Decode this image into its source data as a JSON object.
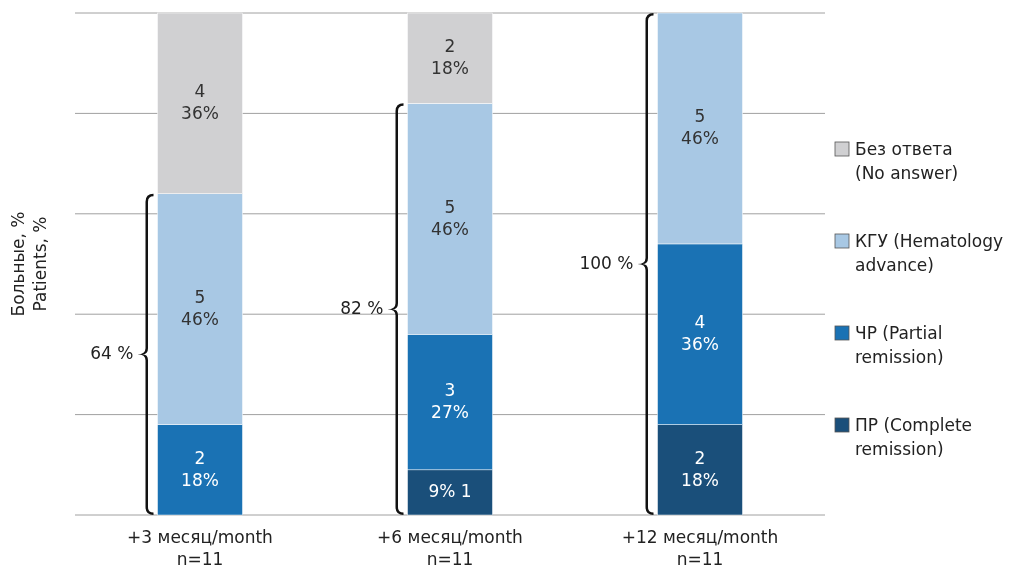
{
  "chart_data": {
    "type": "bar",
    "stacked": true,
    "ylabel": "Больные, %\nPatients, %",
    "categories": [
      "+3 месяц/month\nn=11",
      "+6 месяц/month\nn=11",
      "+12 месяц/month\nn=11"
    ],
    "series": [
      {
        "name": "ПР (Complete\nremission)",
        "color": "#1a4f7a",
        "values": [
          0,
          9,
          18
        ],
        "value_labels": [
          null,
          "9% 1",
          "2\n18%"
        ]
      },
      {
        "name": "ЧР (Partial\nremission)",
        "color": "#1a72b4",
        "values": [
          18,
          27,
          36
        ],
        "value_labels": [
          "2\n18%",
          "3\n27%",
          "4\n36%"
        ]
      },
      {
        "name": "КГУ (Hematology\nadvance)",
        "color": "#a8c8e4",
        "values": [
          46,
          46,
          46
        ],
        "value_labels": [
          "5\n46%",
          "5\n46%",
          "5\n46%"
        ]
      },
      {
        "name": "Без ответа\n(No answer)",
        "color": "#d0d0d2",
        "values": [
          36,
          18,
          0
        ],
        "value_labels": [
          "4\n36%",
          "2\n18%",
          null
        ]
      }
    ],
    "ylim": [
      0,
      100
    ],
    "yticks": [
      {
        "value": 0,
        "label": null
      },
      {
        "value": 20,
        "label": null
      },
      {
        "value": 40,
        "label": null
      },
      {
        "value": 60,
        "label": null
      },
      {
        "value": 80,
        "label": null
      },
      {
        "value": 100,
        "label": null
      }
    ],
    "tick_labels": "x",
    "grid": "y",
    "legend": "right",
    "annotations": [
      "64 %",
      "82 %",
      "100 %"
    ]
  }
}
